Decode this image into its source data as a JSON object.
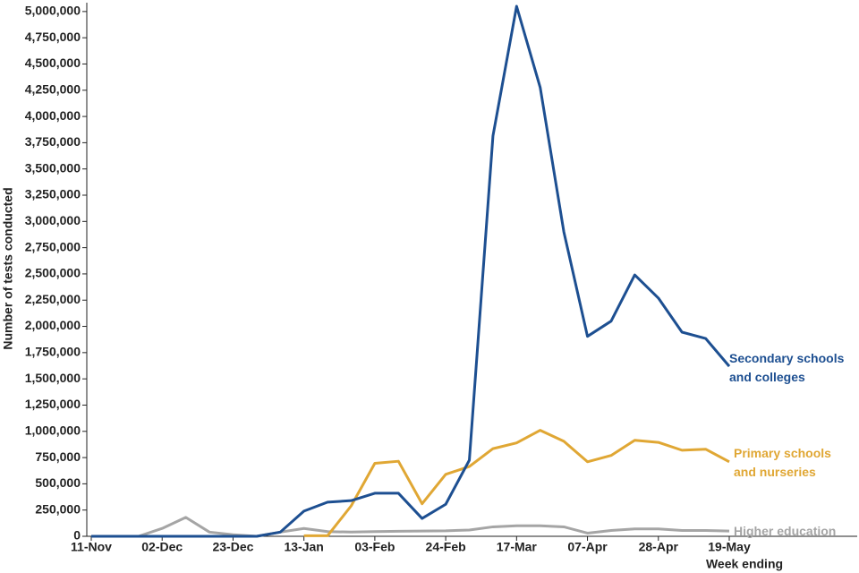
{
  "chart_data": {
    "type": "line",
    "y_label": "Number of tests conducted",
    "x_label": "Week ending",
    "categories": [
      "11-Nov",
      null,
      null,
      "02-Dec",
      null,
      null,
      "23-Dec",
      null,
      null,
      "13-Jan",
      null,
      null,
      "03-Feb",
      null,
      null,
      "24-Feb",
      null,
      null,
      "17-Mar",
      null,
      null,
      "07-Apr",
      null,
      null,
      "28-Apr",
      null,
      null,
      "19-May"
    ],
    "series": [
      {
        "name": "Secondary schools and colleges",
        "color": "#1d4f91",
        "values": [
          0,
          0,
          0,
          0,
          0,
          0,
          0,
          0,
          40000,
          240000,
          325000,
          340000,
          410000,
          410000,
          170000,
          305000,
          725000,
          3815000,
          5050000,
          4275000,
          2900000,
          1905000,
          2050000,
          2490000,
          2270000,
          1945000,
          1885000,
          1620000
        ]
      },
      {
        "name": "Primary schools and nurseries",
        "color": "#e0a734",
        "values": [
          null,
          null,
          null,
          null,
          null,
          null,
          null,
          null,
          null,
          5000,
          5000,
          290000,
          695000,
          715000,
          310000,
          590000,
          665000,
          835000,
          890000,
          1010000,
          905000,
          710000,
          770000,
          915000,
          895000,
          820000,
          830000,
          710000
        ]
      },
      {
        "name": "Higher education",
        "color": "#a5a5a5",
        "values": [
          0,
          0,
          0,
          75000,
          180000,
          40000,
          15000,
          0,
          40000,
          75000,
          45000,
          40000,
          45000,
          48000,
          50000,
          52000,
          60000,
          90000,
          100000,
          100000,
          90000,
          30000,
          55000,
          70000,
          70000,
          55000,
          55000,
          50000
        ]
      }
    ],
    "ylim": [
      0,
      5050000
    ],
    "yticks": [
      0,
      {
        "value": 250000,
        "label": "250,000"
      },
      {
        "value": 500000,
        "label": "500,000"
      },
      {
        "value": 750000,
        "label": "750,000"
      },
      {
        "value": 1000000,
        "label": "1,000,000"
      },
      {
        "value": 1250000,
        "label": "1,250,000"
      },
      {
        "value": 1500000,
        "label": "1,500,000"
      },
      {
        "value": 1750000,
        "label": "1,750,000"
      },
      {
        "value": 2000000,
        "label": "2,000,000"
      },
      {
        "value": 2250000,
        "label": "2,250,000"
      },
      {
        "value": 2500000,
        "label": "2,500,000"
      },
      {
        "value": 2750000,
        "label": "2,750,000"
      },
      {
        "value": 3000000,
        "label": "3,000,000"
      },
      {
        "value": 3250000,
        "label": "3,250,000"
      },
      {
        "value": 3500000,
        "label": "3,500,000"
      },
      {
        "value": 3750000,
        "label": "3,750,000"
      },
      {
        "value": 4000000,
        "label": "4,000,000"
      },
      {
        "value": 4250000,
        "label": "4,250,000"
      },
      {
        "value": 4500000,
        "label": "4,500,000"
      },
      {
        "value": 4750000,
        "label": "4,750,000"
      },
      {
        "value": 5000000,
        "label": "5,000,000"
      }
    ]
  }
}
